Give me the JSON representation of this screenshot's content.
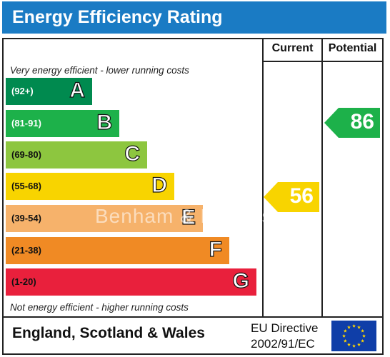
{
  "header": {
    "title": "Energy Efficiency Rating"
  },
  "columns": {
    "current": "Current",
    "potential": "Potential"
  },
  "notes": {
    "top": "Very energy efficient - lower running costs",
    "bottom": "Not energy efficient - higher running costs"
  },
  "bands": [
    {
      "range": "(92+)",
      "letter": "A",
      "color": "#008a4f",
      "text_color": "#ffffff"
    },
    {
      "range": "(81-91)",
      "letter": "B",
      "color": "#1db14a",
      "text_color": "#ffffff"
    },
    {
      "range": "(69-80)",
      "letter": "C",
      "color": "#8dc63f",
      "text_color": "#111111"
    },
    {
      "range": "(55-68)",
      "letter": "D",
      "color": "#f8d400",
      "text_color": "#111111"
    },
    {
      "range": "(39-54)",
      "letter": "E",
      "color": "#f6b26b",
      "text_color": "#111111"
    },
    {
      "range": "(21-38)",
      "letter": "F",
      "color": "#f08a24",
      "text_color": "#111111"
    },
    {
      "range": "(1-20)",
      "letter": "G",
      "color": "#e9203c",
      "text_color": "#111111"
    }
  ],
  "ratings": {
    "current": {
      "value": "56",
      "color": "#f8d400"
    },
    "potential": {
      "value": "86",
      "color": "#1db14a"
    }
  },
  "footer": {
    "region": "England, Scotland & Wales",
    "directive_line1": "EU Directive",
    "directive_line2": "2002/91/EC"
  },
  "watermark": "Benham & Reeves"
}
